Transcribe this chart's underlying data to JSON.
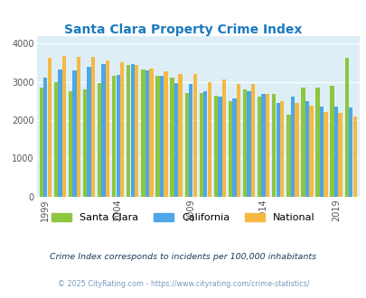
{
  "title": "Santa Clara Property Crime Index",
  "title_color": "#1a7abf",
  "years": [
    1999,
    2000,
    2001,
    2002,
    2003,
    2004,
    2005,
    2006,
    2007,
    2008,
    2009,
    2010,
    2011,
    2012,
    2013,
    2014,
    2015,
    2016,
    2017,
    2018,
    2019,
    2020
  ],
  "santa_clara": [
    2840,
    3000,
    2760,
    2800,
    2960,
    3160,
    3440,
    3310,
    3160,
    3110,
    2710,
    2700,
    2630,
    2500,
    2800,
    2620,
    2680,
    2150,
    2840,
    2840,
    2900,
    3620
  ],
  "california": [
    3110,
    3310,
    3290,
    3380,
    3450,
    3170,
    3450,
    3290,
    3150,
    2960,
    2950,
    2750,
    2620,
    2560,
    2750,
    2690,
    2440,
    2600,
    2490,
    2360,
    2350,
    2340
  ],
  "national": [
    3630,
    3670,
    3660,
    3660,
    3560,
    3510,
    3430,
    3340,
    3260,
    3210,
    3210,
    2990,
    3060,
    2940,
    2950,
    2680,
    2500,
    2450,
    2380,
    2200,
    2180,
    2090
  ],
  "santa_clara_color": "#8dc63f",
  "california_color": "#4da6e8",
  "national_color": "#f5b942",
  "bg_color": "#ddeef6",
  "ylabel_ticks": [
    0,
    1000,
    2000,
    3000,
    4000
  ],
  "xtick_years": [
    1999,
    2004,
    2009,
    2014,
    2019
  ],
  "ylim": [
    0,
    4200
  ],
  "footnote1": "Crime Index corresponds to incidents per 100,000 inhabitants",
  "footnote2": "© 2025 CityRating.com - https://www.cityrating.com/crime-statistics/",
  "footnote1_color": "#1a3a5c",
  "footnote2_color": "#7a9abf"
}
